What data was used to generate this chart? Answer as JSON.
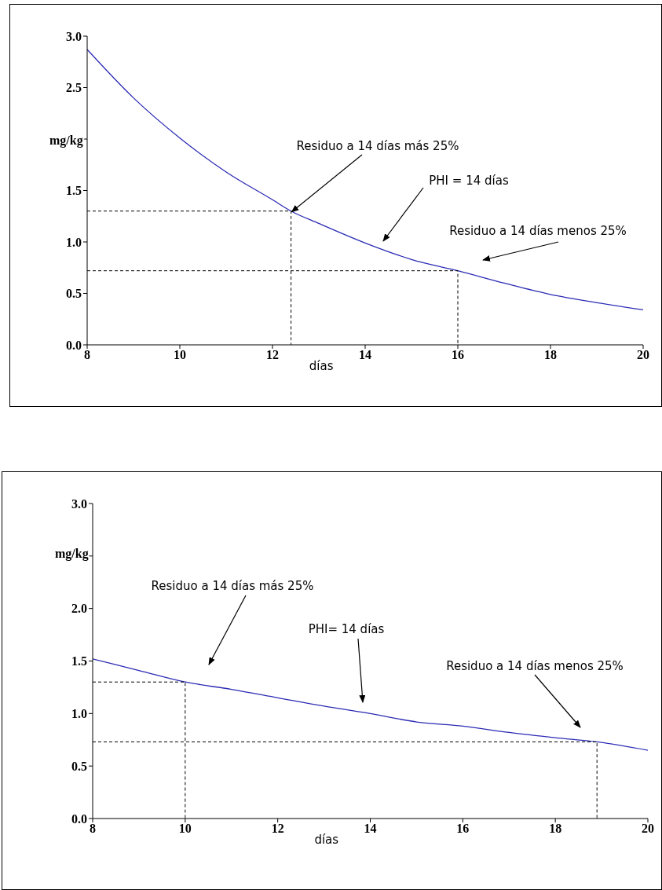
{
  "chart_data": [
    {
      "type": "line",
      "ylabel": "mg/kg",
      "xlabel": "días",
      "xlim": [
        8,
        20
      ],
      "xticks": [
        8,
        10,
        12,
        14,
        16,
        18,
        20
      ],
      "ylim": [
        0,
        3
      ],
      "yticks": [
        {
          "value": 0,
          "label": "0.0"
        },
        0.5,
        {
          "value": 1,
          "label": "1.0"
        },
        1.5,
        {
          "value": 2,
          "label": null
        },
        2.5,
        {
          "value": 3,
          "label": "3.0"
        }
      ],
      "marker": "none",
      "series": [
        {
          "color": "#2b2bb5",
          "line_style": "solid",
          "x": [
            8,
            9,
            10,
            11,
            12,
            12.4,
            13,
            14,
            15,
            16,
            17,
            18,
            19,
            20
          ],
          "values": [
            2.87,
            2.4,
            2.01,
            1.68,
            1.41,
            1.3,
            1.18,
            0.99,
            0.83,
            0.72,
            0.6,
            0.49,
            0.41,
            0.34
          ]
        },
        {
          "color": "#000000",
          "line_style": "dashed",
          "x": [
            8,
            12.4,
            12.4
          ],
          "values": [
            1.3,
            1.3,
            0
          ]
        },
        {
          "color": "#000000",
          "line_style": "dashed",
          "x": [
            8,
            16,
            16
          ],
          "values": [
            0.72,
            0.72,
            0
          ]
        }
      ],
      "annotations": [
        {
          "text": "Residuo a 14 días más 25%",
          "x": 12.4,
          "y": 1.3
        },
        "PHI = 14 días",
        "Residuo a 14 días menos 25%"
      ]
    },
    {
      "type": "line",
      "ylabel": "mg/kg",
      "xlabel": "días",
      "xlim": [
        8,
        20
      ],
      "xticks": [
        8,
        10,
        12,
        14,
        16,
        18,
        20
      ],
      "ylim": [
        0,
        3
      ],
      "yticks": [
        {
          "value": 0,
          "label": "0.0"
        },
        0.5,
        {
          "value": 1,
          "label": "1.0"
        },
        1.5,
        {
          "value": 2,
          "label": "2.0"
        },
        {
          "value": 2.5,
          "label": null
        },
        {
          "value": 3,
          "label": "3.0"
        }
      ],
      "marker": "none",
      "series": [
        {
          "color": "#2b2bb5",
          "line_style": "solid",
          "x": [
            8,
            9,
            10,
            11,
            12,
            13,
            14,
            15,
            16,
            17,
            18,
            18.9,
            20
          ],
          "values": [
            1.52,
            1.41,
            1.3,
            1.23,
            1.15,
            1.07,
            1,
            0.92,
            0.88,
            0.82,
            0.77,
            0.73,
            0.65
          ]
        },
        {
          "color": "#000000",
          "line_style": "dashed",
          "x": [
            8,
            10,
            10
          ],
          "values": [
            1.3,
            1.3,
            0
          ]
        },
        {
          "color": "#000000",
          "line_style": "dashed",
          "x": [
            8,
            18.9,
            18.9
          ],
          "values": [
            0.73,
            0.73,
            0
          ]
        }
      ],
      "annotations": [
        "Residuo a 14 días más 25%",
        "PHI= 14 días",
        "Residuo a 14 días menos 25%"
      ]
    }
  ]
}
